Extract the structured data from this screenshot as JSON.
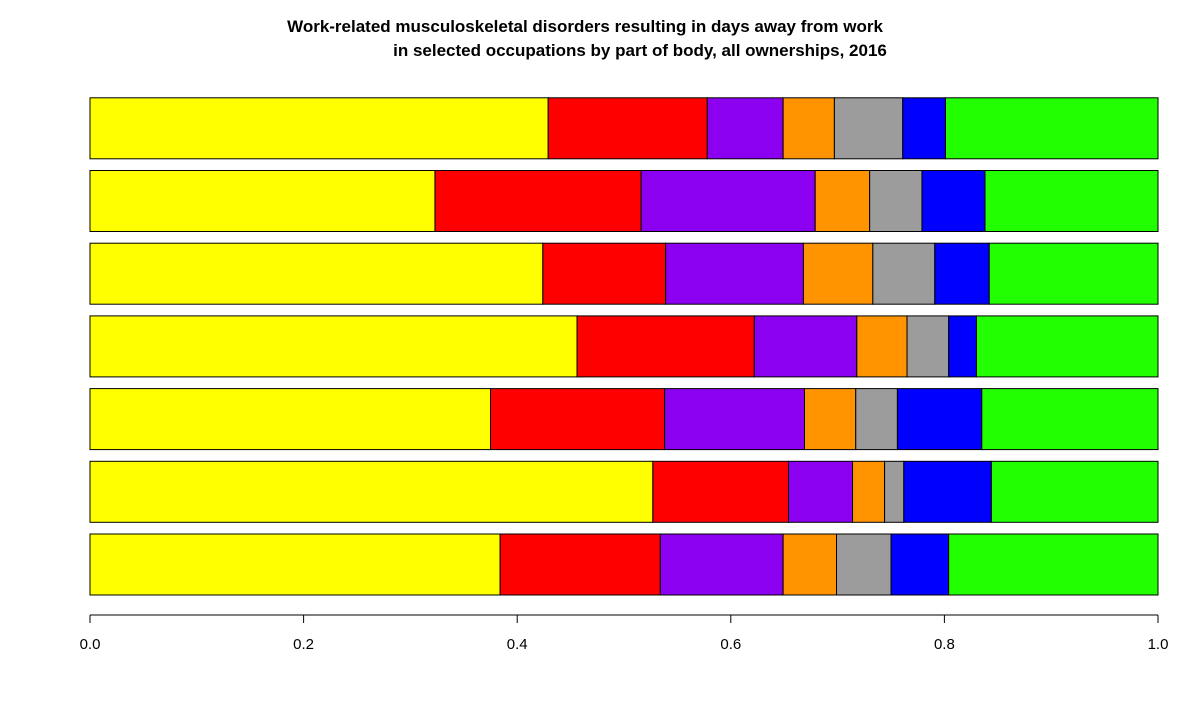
{
  "chart_data": {
    "type": "bar",
    "orientation": "horizontal",
    "stacked": true,
    "title": "Work-related musculoskeletal disorders resulting in days away from work",
    "subtitle": "in selected occupations by part of body, all ownerships, 2016",
    "xlabel": "",
    "ylabel": "",
    "xlim": [
      0,
      1
    ],
    "grid": false,
    "legend": "none",
    "x_ticks": [
      "0.0",
      "0.2",
      "0.4",
      "0.6",
      "0.8",
      "1.0"
    ],
    "categories": [
      "",
      "",
      "",
      "",
      "",
      "",
      ""
    ],
    "series": [
      {
        "color": "#ffff00",
        "values": [
          0.384,
          0.527,
          0.375,
          0.456,
          0.424,
          0.323,
          0.429
        ]
      },
      {
        "color": "#ff0000",
        "values": [
          0.15,
          0.127,
          0.163,
          0.166,
          0.115,
          0.193,
          0.149
        ]
      },
      {
        "color": "#8b00f0",
        "values": [
          0.115,
          0.06,
          0.131,
          0.096,
          0.129,
          0.163,
          0.071
        ]
      },
      {
        "color": "#ff9400",
        "values": [
          0.05,
          0.03,
          0.048,
          0.047,
          0.065,
          0.051,
          0.048
        ]
      },
      {
        "color": "#9c9c9c",
        "values": [
          0.051,
          0.018,
          0.039,
          0.039,
          0.058,
          0.049,
          0.064
        ]
      },
      {
        "color": "#0000ff",
        "values": [
          0.054,
          0.082,
          0.079,
          0.026,
          0.051,
          0.059,
          0.04
        ]
      },
      {
        "color": "#22ff00",
        "values": [
          0.196,
          0.156,
          0.165,
          0.17,
          0.158,
          0.162,
          0.199
        ]
      }
    ]
  }
}
